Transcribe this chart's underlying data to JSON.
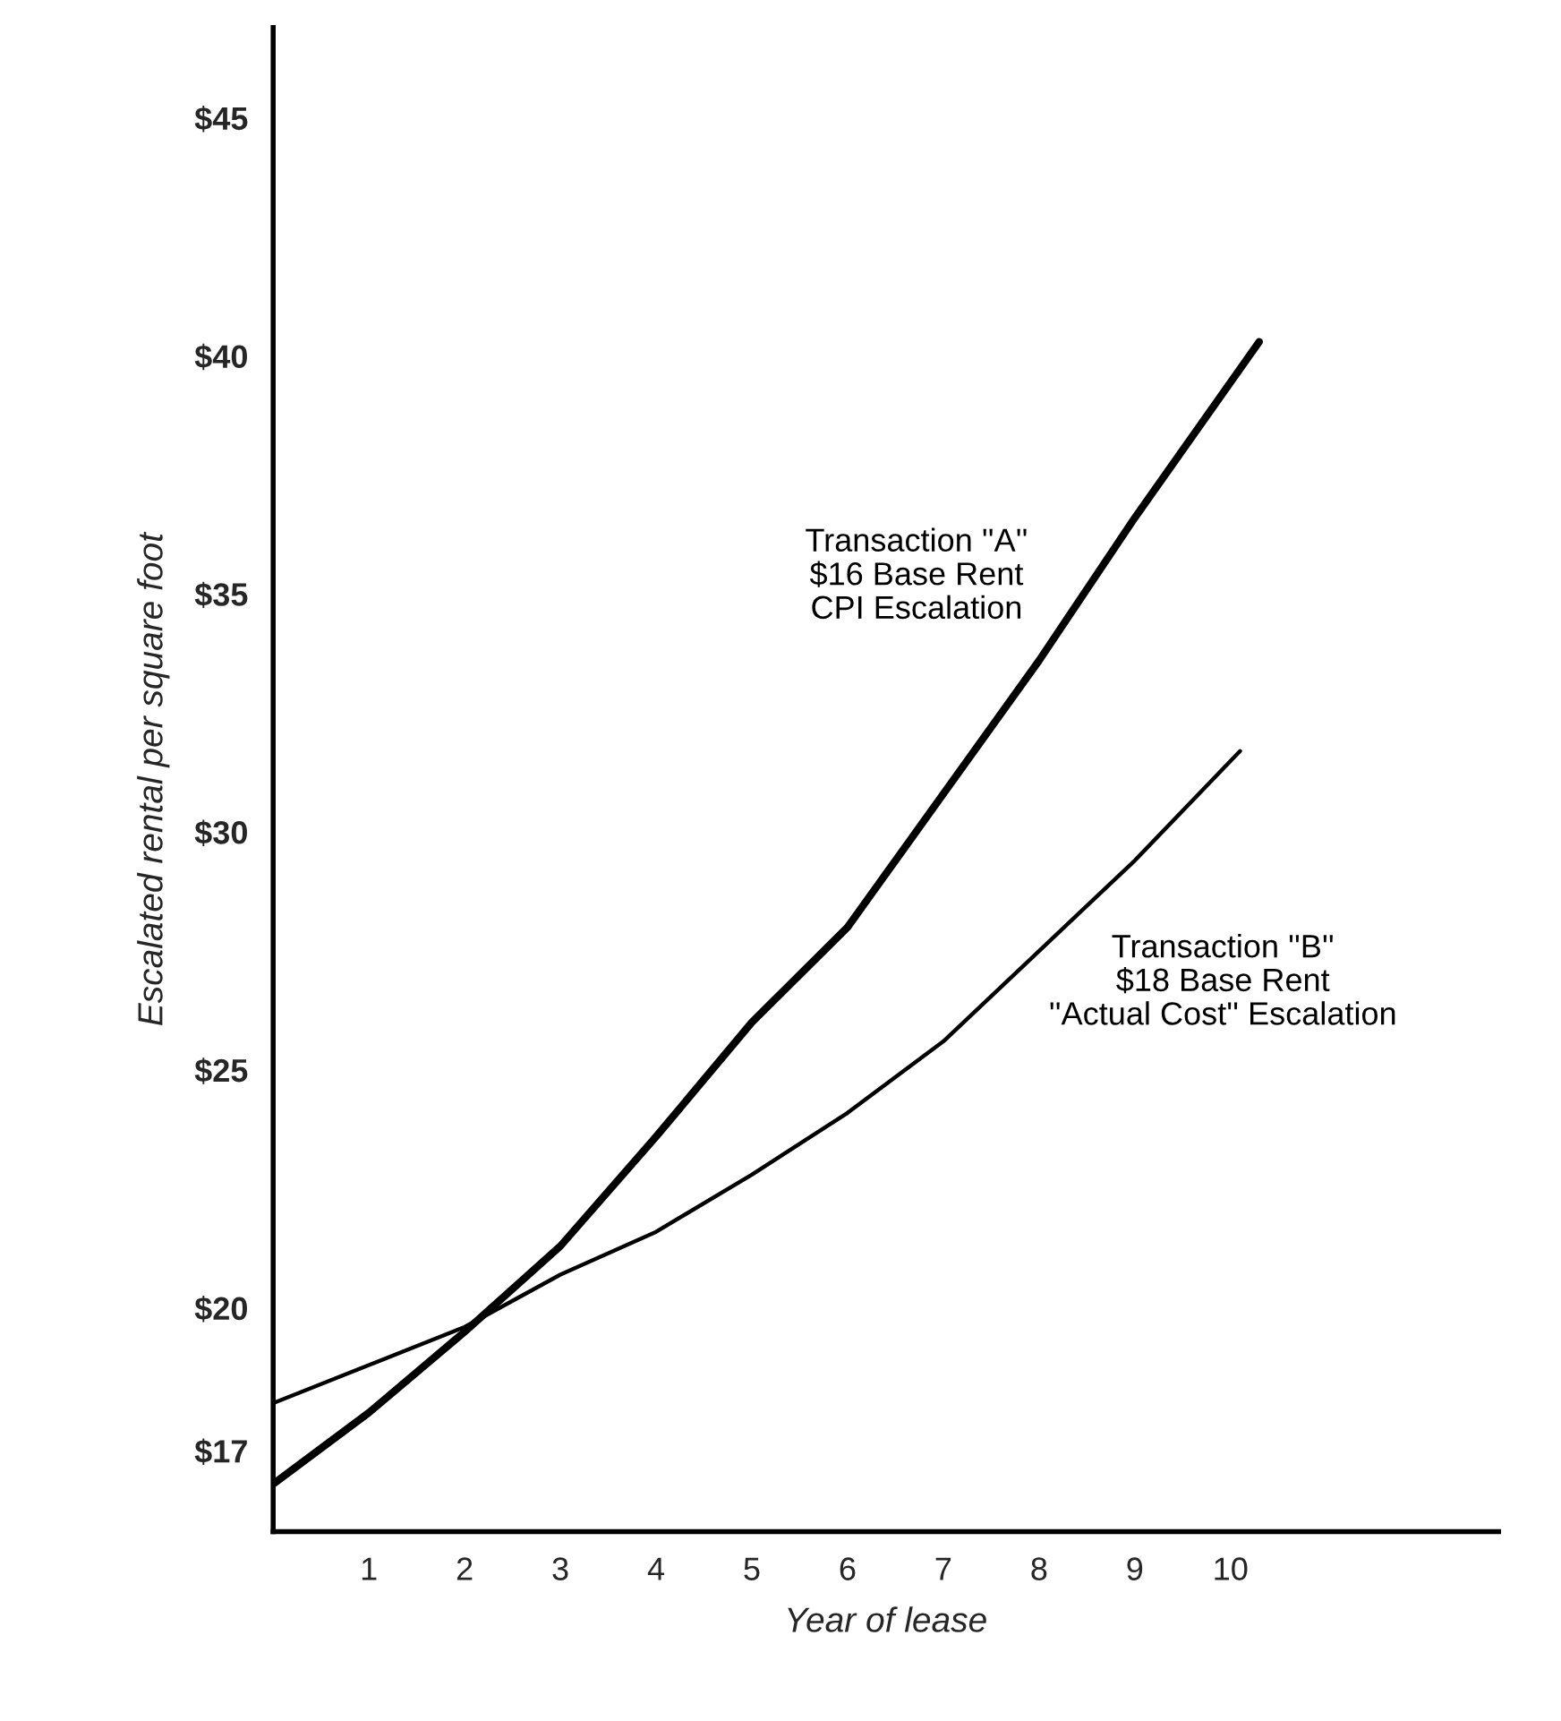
{
  "chart_data": {
    "type": "line",
    "xlabel": "Year of lease",
    "ylabel": "Escalated rental per square foot",
    "xlim": [
      0,
      12.8
    ],
    "xticks": [
      1,
      2,
      3,
      4,
      5,
      6,
      7,
      8,
      9,
      10
    ],
    "ylim": [
      15.3,
      46.9
    ],
    "yticks": [
      {
        "value": 17,
        "label": "$17"
      },
      {
        "value": 20,
        "label": "$20"
      },
      {
        "value": 25,
        "label": "$25"
      },
      {
        "value": 30,
        "label": "$30"
      },
      {
        "value": 35,
        "label": "$35"
      },
      {
        "value": 40,
        "label": "$40"
      },
      {
        "value": 45,
        "label": "$45"
      }
    ],
    "grid": false,
    "legend": false,
    "marker": "none",
    "line_style": "solid",
    "series": [
      {
        "name": "Transaction ''A''\n$16 Base Rent\nCPI Escalation",
        "color": "#000000",
        "x": [
          0,
          1,
          2,
          3,
          4,
          5,
          6,
          7,
          8,
          9,
          10.3
        ],
        "values": [
          16.3,
          17.8,
          19.5,
          21.3,
          23.6,
          26.0,
          28.0,
          30.8,
          33.6,
          36.6,
          40.3
        ]
      },
      {
        "name": "Transaction ''B''\n$18 Base Rent\n''Actual Cost'' Escalation",
        "color": "#000000",
        "x": [
          0,
          1,
          2,
          3,
          4,
          5,
          6,
          7,
          8,
          9,
          10.1
        ],
        "values": [
          18.0,
          18.8,
          19.6,
          20.7,
          21.6,
          22.8,
          24.1,
          25.6,
          27.5,
          29.4,
          31.7
        ]
      }
    ]
  }
}
